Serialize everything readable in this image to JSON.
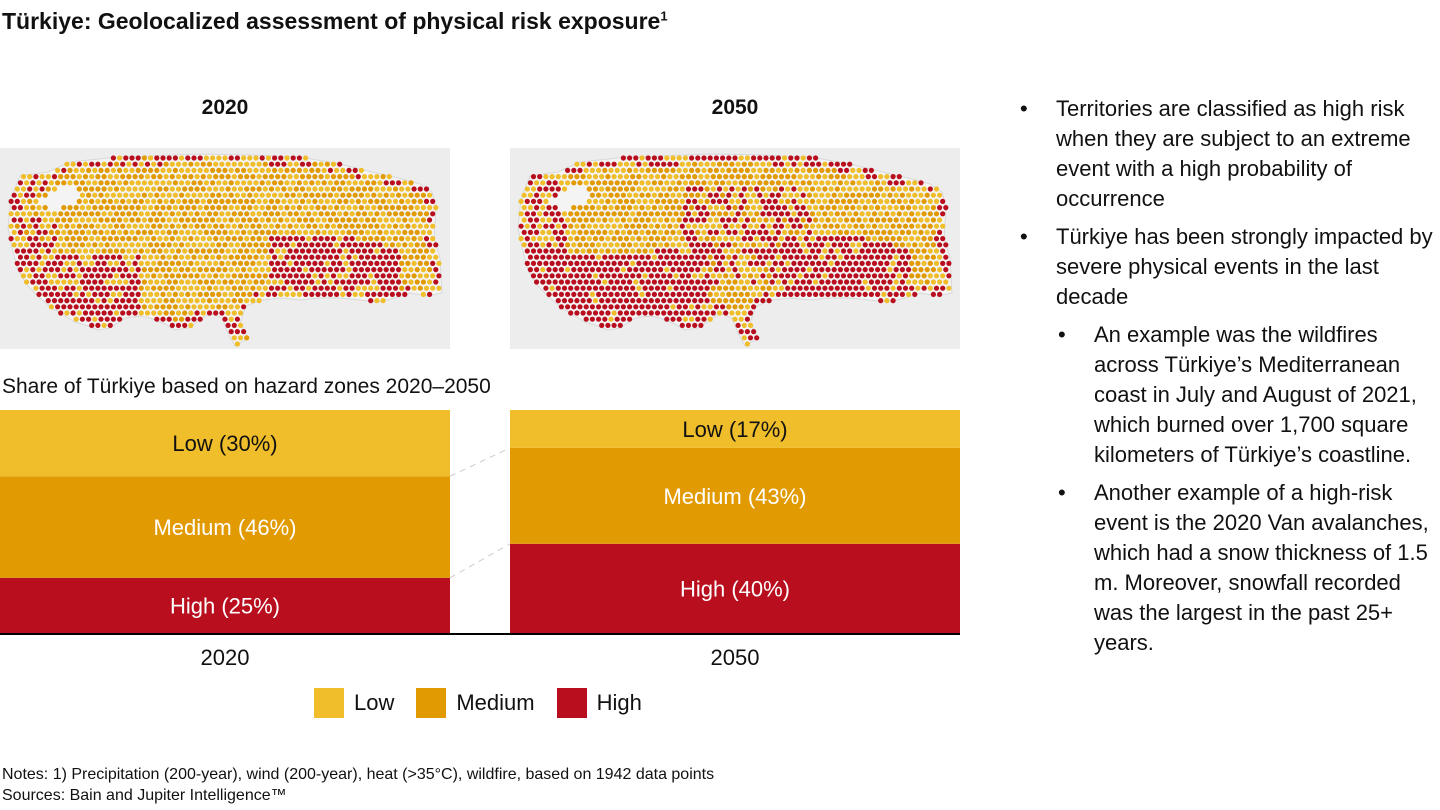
{
  "title": "Türkiye: Geolocalized assessment of physical risk exposure",
  "title_superscript": "1",
  "maps": [
    {
      "label": "2020"
    },
    {
      "label": "2050"
    }
  ],
  "colors": {
    "low": "#F0BE2A",
    "medium": "#E29A02",
    "high": "#B80E1E",
    "map_bg": "#EDEDED",
    "map_land": "#F4F4F4"
  },
  "chart_data": {
    "type": "bar",
    "stacked": true,
    "title": "Share of Türkiye based on hazard zones 2020–2050",
    "categories": [
      "2020",
      "2050"
    ],
    "series": [
      {
        "name": "Low",
        "values": [
          30,
          17
        ],
        "labels": [
          "Low (30%)",
          "Low (17%)"
        ],
        "color": "#F0BE2A"
      },
      {
        "name": "Medium",
        "values": [
          46,
          43
        ],
        "labels": [
          "Medium (46%)",
          "Medium (43%)"
        ],
        "color": "#E29A02"
      },
      {
        "name": "High",
        "values": [
          25,
          40
        ],
        "labels": [
          "High (25%)",
          "High (40%)"
        ],
        "color": "#B80E1E"
      }
    ],
    "ylim": [
      0,
      100
    ],
    "legend_position": "bottom",
    "grid": false
  },
  "legend": [
    "Low",
    "Medium",
    "High"
  ],
  "bullets": [
    {
      "text": "Territories are classified as high risk when they are subject to an extreme event with a high probability of occurrence",
      "sub": []
    },
    {
      "text": "Türkiye has been strongly impacted by severe physical events in the last decade",
      "sub": [
        "An example was the wildfires across Türkiye’s Mediterranean coast in July and August of 2021, which burned over 1,700 square kilometers of Türkiye’s coastline.",
        "Another example of a high-risk event is the 2020 Van avalanches, which had a snow thickness of 1.5 m. Moreover, snowfall recorded was the largest in the past 25+ years."
      ]
    }
  ],
  "notes": [
    "Notes: 1) Precipitation (200-year), wind (200-year), heat (>35°C), wildfire, based on 1942 data points",
    "Sources: Bain and Jupiter Intelligence™"
  ]
}
